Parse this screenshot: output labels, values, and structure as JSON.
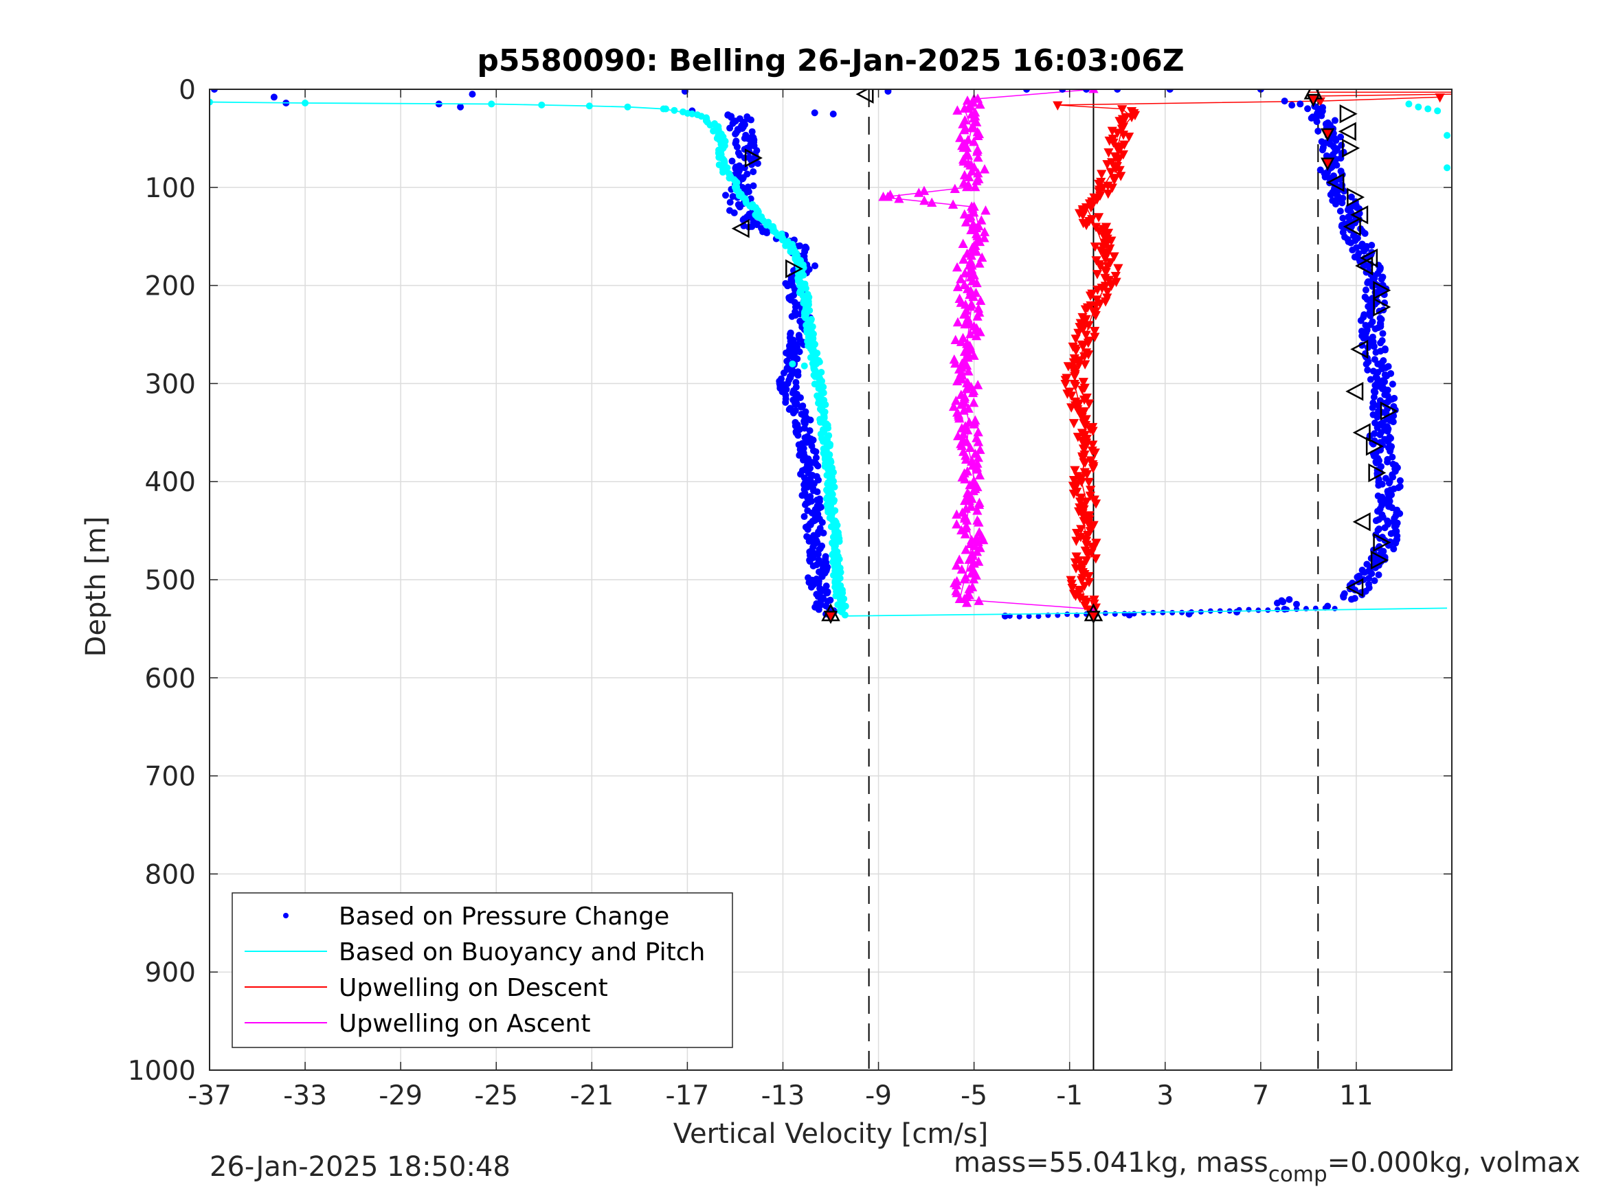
{
  "figure": {
    "footer_left": "26-Jan-2025 18:50:48",
    "footer_right_prefix": "mass=55.041kg, mass",
    "footer_right_sub": "comp",
    "footer_right_suffix": "=0.000kg, volmax"
  },
  "chart_data": {
    "type": "scatter",
    "title": "p5580090: Belling 26-Jan-2025 16:03:06Z",
    "xlabel": "Vertical Velocity [cm/s]",
    "ylabel": "Depth [m]",
    "xlim": [
      -37,
      15
    ],
    "ylim": [
      0,
      1000
    ],
    "y_reversed": true,
    "xticks": [
      -37,
      -33,
      -29,
      -25,
      -21,
      -17,
      -13,
      -9,
      -5,
      -1,
      3,
      7,
      11
    ],
    "yticks": [
      0,
      100,
      200,
      300,
      400,
      500,
      600,
      700,
      800,
      900,
      1000
    ],
    "grid": true,
    "legend_position": "lower-left",
    "reference_lines": [
      {
        "x": -9.4,
        "style": "dashed",
        "color": "#000000"
      },
      {
        "x": 0,
        "style": "solid",
        "color": "#000000"
      },
      {
        "x": 9.4,
        "style": "dashed",
        "color": "#000000"
      }
    ],
    "series": [
      {
        "name": "Based on Pressure Change",
        "style": "dots",
        "color": "#0000ff",
        "descent": {
          "depth": [
            0,
            8,
            14,
            18,
            22,
            26,
            30,
            40,
            50,
            60,
            70,
            80,
            90,
            100,
            110,
            120,
            130,
            140,
            150,
            160,
            170,
            180,
            190,
            200,
            220,
            240,
            260,
            280,
            300,
            320,
            340,
            360,
            380,
            400,
            420,
            440,
            460,
            480,
            500,
            520,
            535
          ],
          "velocity": [
            -36.8,
            -34.3,
            -33.8,
            -26.5,
            -16.8,
            -15.3,
            -14.8,
            -14.7,
            -14.6,
            -14.5,
            -14.6,
            -14.6,
            -14.8,
            -14.7,
            -14.9,
            -14.8,
            -14.5,
            -14.3,
            -13.2,
            -12.4,
            -12.2,
            -12.0,
            -12.5,
            -12.6,
            -12.3,
            -12.2,
            -12.4,
            -12.6,
            -12.8,
            -12.5,
            -12.1,
            -12.0,
            -11.9,
            -11.9,
            -11.8,
            -11.7,
            -11.6,
            -11.5,
            -11.6,
            -11.4,
            -11.2
          ]
        },
        "ascent": {
          "depth": [
            537,
            536,
            535,
            533,
            530,
            527,
            520,
            500,
            480,
            460,
            440,
            420,
            400,
            380,
            360,
            340,
            320,
            300,
            280,
            260,
            240,
            220,
            200,
            180,
            160,
            140,
            120,
            100,
            80,
            60,
            40,
            20,
            12
          ],
          "velocity": [
            -3.7,
            1.5,
            4.0,
            6.0,
            8.0,
            9.8,
            10.8,
            11.3,
            12.0,
            12.2,
            12.3,
            12.4,
            12.4,
            12.3,
            12.0,
            12.1,
            12.2,
            12.1,
            11.9,
            11.7,
            11.6,
            11.7,
            11.9,
            11.5,
            11.2,
            10.8,
            10.7,
            10.1,
            9.9,
            10.1,
            9.8,
            9.4,
            8.0
          ]
        }
      },
      {
        "name": "Based on Buoyancy and Pitch",
        "style": "line",
        "color": "#00ffff",
        "descent": {
          "depth": [
            13,
            14,
            15,
            16,
            17,
            18,
            20,
            25,
            30,
            40,
            50,
            60,
            70,
            80,
            90,
            100,
            110,
            120,
            130,
            140,
            150,
            160,
            170,
            180,
            200,
            220,
            240,
            260,
            280,
            300,
            320,
            340,
            360,
            380,
            400,
            420,
            440,
            460,
            480,
            500,
            520,
            530,
            536
          ],
          "velocity": [
            -37,
            -33,
            -25.2,
            -23.1,
            -21.1,
            -19.5,
            -18.0,
            -16.8,
            -16.2,
            -15.8,
            -15.6,
            -15.5,
            -15.6,
            -15.5,
            -15.2,
            -15.0,
            -14.7,
            -14.3,
            -13.9,
            -13.5,
            -13.1,
            -12.7,
            -12.4,
            -12.3,
            -12.2,
            -12.0,
            -11.9,
            -11.8,
            -11.6,
            -11.5,
            -11.4,
            -11.3,
            -11.2,
            -11.1,
            -11.0,
            -11.0,
            -10.9,
            -10.8,
            -10.8,
            -10.7,
            -10.6,
            -10.5,
            -10.4
          ]
        },
        "ascent": {
          "depth": [
            537,
            535,
            533,
            531,
            529
          ],
          "velocity": [
            -10.4,
            -3.0,
            3.0,
            9.0,
            14.8
          ]
        }
      },
      {
        "name": "Upwelling on Descent",
        "style": "triangle-down",
        "color": "#ff0000",
        "depth": [
          8,
          12,
          16,
          20,
          28,
          40,
          60,
          80,
          100,
          120,
          140,
          160,
          180,
          200,
          220,
          240,
          260,
          280,
          300,
          320,
          340,
          360,
          380,
          400,
          420,
          440,
          460,
          480,
          500,
          520,
          530
        ],
        "velocity": [
          14.5,
          9.5,
          -1.5,
          1.2,
          1.6,
          1.2,
          1.0,
          0.9,
          0.4,
          -0.3,
          0.1,
          0.4,
          0.6,
          0.5,
          0.1,
          -0.2,
          -0.4,
          -0.6,
          -0.8,
          -0.6,
          -0.4,
          -0.3,
          -0.4,
          -0.5,
          -0.3,
          -0.4,
          -0.3,
          -0.3,
          -0.5,
          -0.4,
          -0.2
        ]
      },
      {
        "name": "Upwelling on Ascent",
        "style": "triangle-up",
        "color": "#ff00ff",
        "depth": [
          530,
          520,
          500,
          480,
          460,
          440,
          420,
          400,
          380,
          360,
          340,
          320,
          300,
          280,
          260,
          240,
          220,
          200,
          180,
          160,
          140,
          120,
          110,
          100,
          80,
          60,
          40,
          20,
          10,
          0
        ],
        "velocity": [
          0,
          -5.6,
          -5.4,
          -5.2,
          -5.1,
          -5.3,
          -5.2,
          -5.0,
          -5.1,
          -5.3,
          -5.2,
          -5.4,
          -5.3,
          -5.5,
          -5.3,
          -5.2,
          -5.1,
          -5.4,
          -5.2,
          -5.0,
          -4.8,
          -5.0,
          -8.8,
          -5.3,
          -5.0,
          -5.3,
          -5.1,
          -5.4,
          -5.0,
          0
        ]
      }
    ],
    "marker_groups": [
      {
        "style": "triangle-right-open",
        "points": [
          [
            -14.3,
            70
          ],
          [
            -12.6,
            183
          ],
          [
            10.6,
            25
          ],
          [
            10.7,
            60
          ],
          [
            12.0,
            205
          ],
          [
            12.0,
            222
          ],
          [
            12.3,
            328
          ],
          [
            11.7,
            364
          ],
          [
            11.8,
            391
          ],
          [
            12.0,
            462
          ],
          [
            11.9,
            480
          ],
          [
            10.9,
            110
          ]
        ]
      },
      {
        "style": "triangle-left-open",
        "points": [
          [
            -9.5,
            5
          ],
          [
            -14.7,
            142
          ],
          [
            10.7,
            43
          ],
          [
            10.2,
            95
          ],
          [
            11.2,
            128
          ],
          [
            11.6,
            172
          ],
          [
            11.2,
            265
          ],
          [
            11.0,
            308
          ],
          [
            11.3,
            350
          ],
          [
            11.3,
            441
          ],
          [
            11.0,
            508
          ],
          [
            10.9,
            140
          ],
          [
            11.4,
            180
          ]
        ]
      },
      {
        "style": "triangle-up-open",
        "points": [
          [
            -11.0,
            535
          ],
          [
            0.0,
            535
          ],
          [
            9.2,
            3
          ]
        ]
      },
      {
        "style": "triangle-down-red",
        "points": [
          [
            -11.0,
            537
          ],
          [
            0.0,
            537
          ],
          [
            9.2,
            10
          ],
          [
            9.8,
            45
          ],
          [
            9.8,
            75
          ]
        ]
      }
    ]
  }
}
